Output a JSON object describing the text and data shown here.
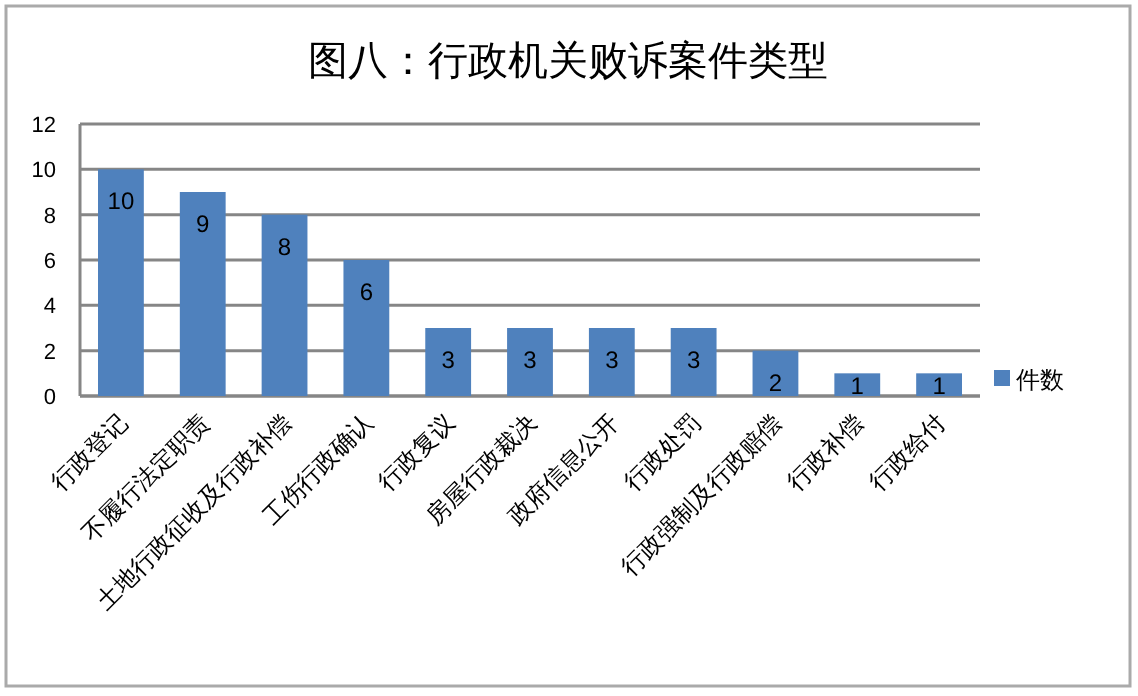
{
  "chart_data": {
    "type": "bar",
    "title": "图八：行政机关败诉案件类型",
    "categories": [
      "行政登记",
      "不履行法定职责",
      "土地行政征收及行政补偿",
      "工伤行政确认",
      "行政复议",
      "房屋行政裁决",
      "政府信息公开",
      "行政处罚",
      "行政强制及行政赔偿",
      "行政补偿",
      "行政给付"
    ],
    "series": [
      {
        "name": "件数",
        "color": "#4f81bd",
        "values": [
          10,
          9,
          8,
          6,
          3,
          3,
          3,
          3,
          2,
          1,
          1
        ]
      }
    ],
    "ylim": [
      0,
      12
    ],
    "yticks": [
      0,
      2,
      4,
      6,
      8,
      10,
      12
    ],
    "grid": "y",
    "legend": "right",
    "data_labels": true
  }
}
